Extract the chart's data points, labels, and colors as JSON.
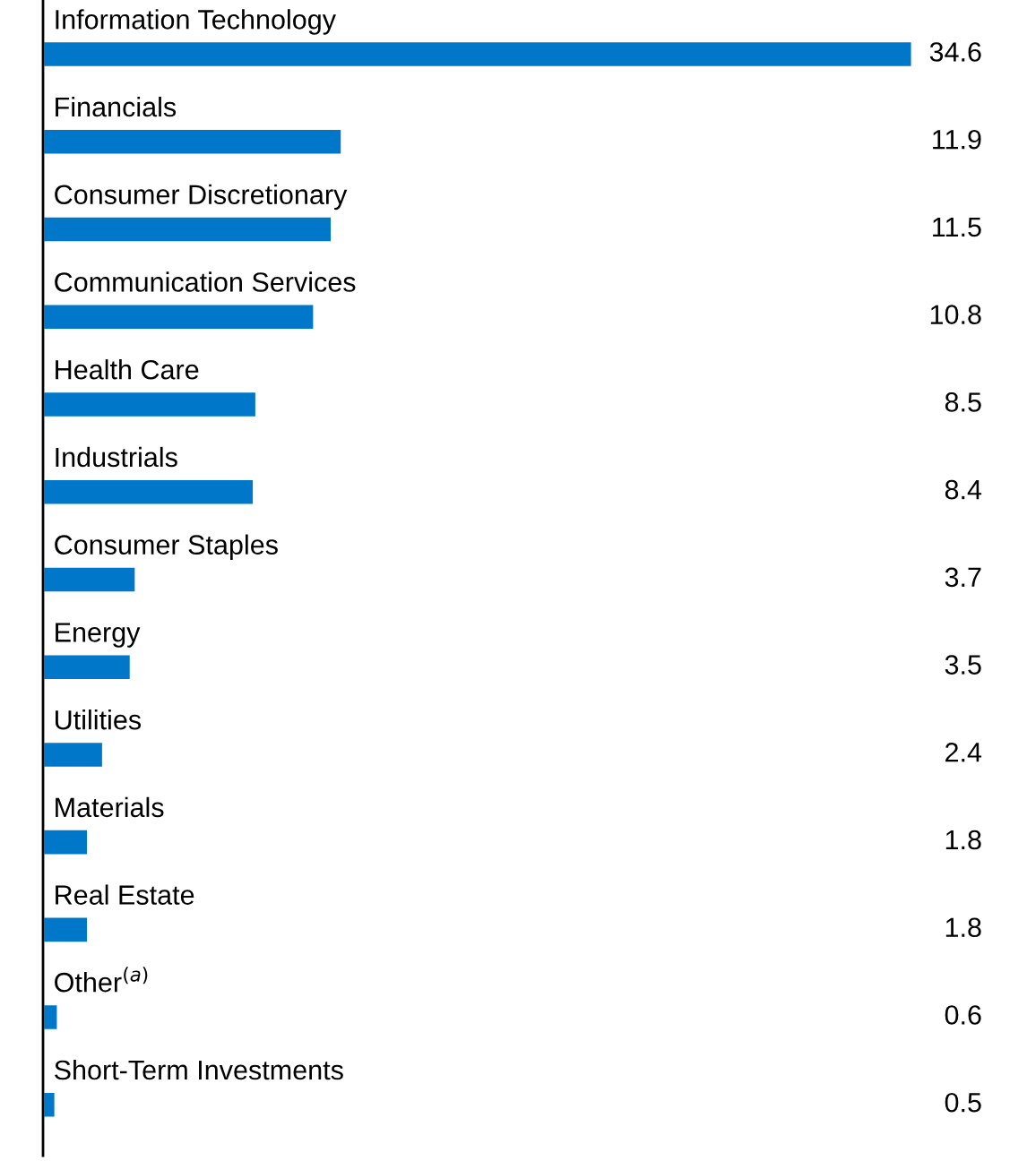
{
  "chart_data": {
    "type": "bar",
    "orientation": "horizontal",
    "data_labels": true,
    "color": "#0077c8",
    "categories": [
      "Information Technology",
      "Financials",
      "Consumer Discretionary",
      "Communication Services",
      "Health Care",
      "Industrials",
      "Consumer Staples",
      "Energy",
      "Utilities",
      "Materials",
      "Real Estate",
      "Other$^{(a)}$",
      "Short-Term Investments"
    ],
    "values": [
      34.6,
      11.9,
      11.5,
      10.8,
      8.5,
      8.4,
      3.7,
      3.5,
      2.4,
      1.8,
      1.8,
      0.6,
      0.5
    ]
  }
}
